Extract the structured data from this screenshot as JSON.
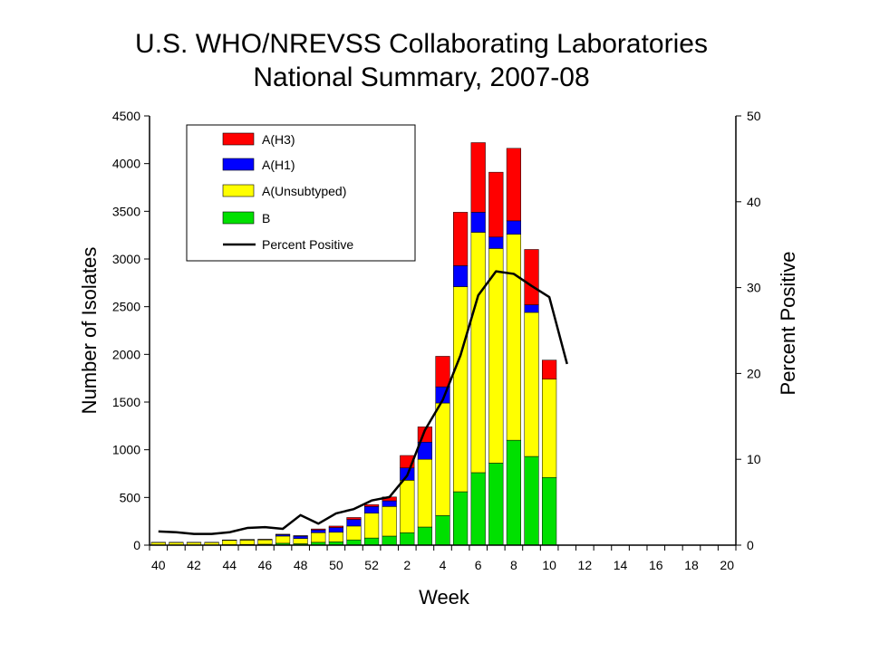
{
  "chart_data": {
    "type": "bar",
    "stacked": true,
    "title_lines": [
      "U.S. WHO/NREVSS Collaborating Laboratories",
      "National Summary, 2007-08"
    ],
    "xlabel": "Week",
    "ylabel": "Number of Isolates",
    "y2label": "Percent Positive",
    "ylim": [
      0,
      4500
    ],
    "y2lim": [
      0,
      50
    ],
    "yticks": [
      0,
      500,
      1000,
      1500,
      2000,
      2500,
      3000,
      3500,
      4000,
      4500
    ],
    "y2ticks": [
      0,
      10,
      20,
      30,
      40,
      50
    ],
    "grid": false,
    "legend_position": "top-left",
    "categories": [
      "40",
      "41",
      "42",
      "43",
      "44",
      "45",
      "46",
      "47",
      "48",
      "49",
      "50",
      "51",
      "52",
      "1",
      "2",
      "3",
      "4",
      "5",
      "6",
      "7",
      "8",
      "9",
      "10",
      "11",
      "12",
      "13",
      "14",
      "15",
      "16",
      "17",
      "18",
      "19",
      "20"
    ],
    "x_tick_labels": [
      "40",
      "42",
      "44",
      "46",
      "48",
      "50",
      "52",
      "2",
      "4",
      "6",
      "8",
      "10",
      "12",
      "14",
      "16",
      "18",
      "20"
    ],
    "series": [
      {
        "name": "B",
        "color": "#00e000",
        "values": [
          3,
          3,
          3,
          3,
          5,
          8,
          10,
          20,
          15,
          30,
          35,
          55,
          75,
          95,
          130,
          190,
          310,
          560,
          760,
          860,
          1100,
          930,
          710,
          0,
          0,
          0,
          0,
          0,
          0,
          0,
          0,
          0,
          0
        ]
      },
      {
        "name": "A(Unsubtyped)",
        "color": "#ffff00",
        "values": [
          25,
          25,
          25,
          25,
          45,
          45,
          45,
          75,
          55,
          100,
          100,
          145,
          260,
          310,
          550,
          710,
          1180,
          2150,
          2520,
          2250,
          2160,
          1510,
          1030,
          0,
          0,
          0,
          0,
          0,
          0,
          0,
          0,
          0,
          0
        ]
      },
      {
        "name": "A(H1)",
        "color": "#0000ff",
        "values": [
          2,
          2,
          2,
          2,
          3,
          5,
          5,
          15,
          25,
          30,
          50,
          70,
          70,
          60,
          130,
          180,
          170,
          220,
          210,
          120,
          140,
          80,
          0,
          0,
          0,
          0,
          0,
          0,
          0,
          0,
          0,
          0,
          0
        ]
      },
      {
        "name": "A(H3)",
        "color": "#ff0000",
        "values": [
          0,
          0,
          0,
          0,
          2,
          2,
          2,
          5,
          5,
          10,
          15,
          20,
          20,
          40,
          130,
          160,
          320,
          560,
          730,
          680,
          760,
          580,
          200,
          0,
          0,
          0,
          0,
          0,
          0,
          0,
          0,
          0,
          0
        ]
      }
    ],
    "line_series": {
      "name": "Percent Positive",
      "color": "#000000",
      "axis": "right",
      "values": [
        1.6,
        1.5,
        1.3,
        1.3,
        1.5,
        2.0,
        2.1,
        1.9,
        3.5,
        2.5,
        3.7,
        4.2,
        5.2,
        5.6,
        8.1,
        13.4,
        16.9,
        22.1,
        29.1,
        31.9,
        31.6,
        30.2,
        28.9,
        21.1
      ]
    },
    "legend_order": [
      "A(H3)",
      "A(H1)",
      "A(Unsubtyped)",
      "B",
      "Percent Positive"
    ]
  }
}
